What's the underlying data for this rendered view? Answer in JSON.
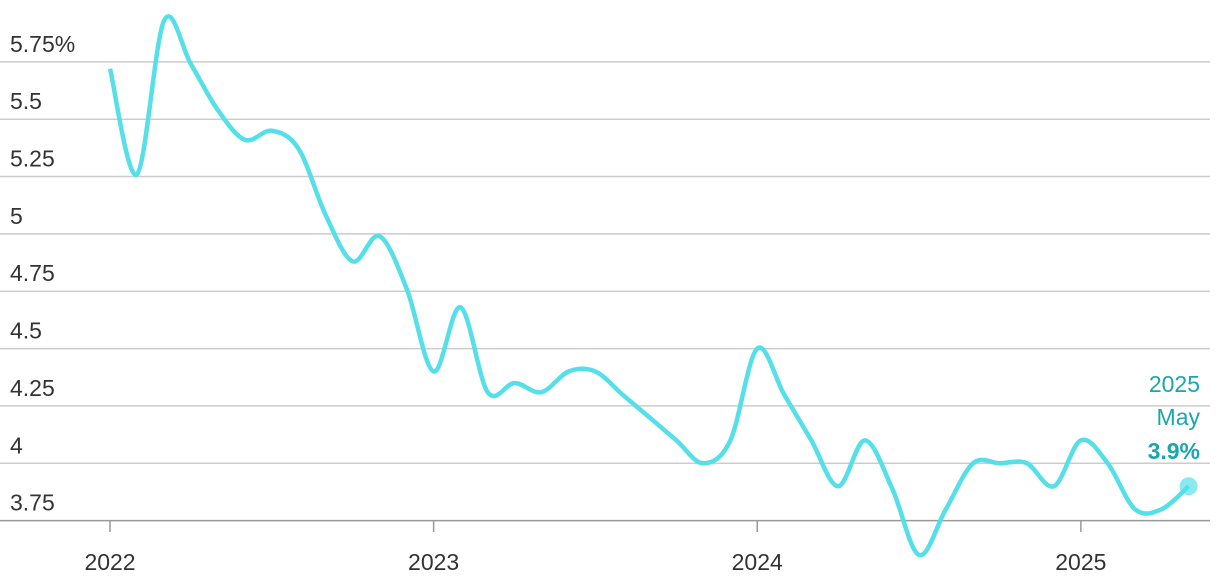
{
  "chart_data": {
    "type": "line",
    "x": [
      2022,
      2022.083,
      2022.167,
      2022.25,
      2022.333,
      2022.417,
      2022.5,
      2022.583,
      2022.667,
      2022.75,
      2022.833,
      2022.917,
      2023,
      2023.083,
      2023.167,
      2023.25,
      2023.333,
      2023.417,
      2023.5,
      2023.583,
      2023.667,
      2023.75,
      2023.833,
      2023.917,
      2024,
      2024.083,
      2024.167,
      2024.25,
      2024.333,
      2024.417,
      2024.5,
      2024.583,
      2024.667,
      2024.75,
      2024.833,
      2024.917,
      2025,
      2025.083,
      2025.167,
      2025.25,
      2025.333
    ],
    "series": [
      {
        "color": "#55dfe8",
        "values": [
          5.72,
          5.26,
          5.93,
          5.74,
          5.54,
          5.41,
          5.45,
          5.37,
          5.08,
          4.88,
          4.99,
          4.76,
          4.4,
          4.68,
          4.31,
          4.35,
          4.31,
          4.4,
          4.4,
          4.3,
          4.2,
          4.1,
          4.0,
          4.1,
          4.5,
          4.3,
          4.1,
          3.9,
          4.1,
          3.89,
          3.6,
          3.8,
          4.0,
          4.0,
          4.0,
          3.9,
          4.1,
          4.0,
          3.8,
          3.8,
          3.9
        ]
      }
    ],
    "xlim": [
      2021.66,
      2025.43
    ],
    "ylim": [
      3.6,
      5.95
    ],
    "xticks": [
      2022,
      2023,
      2024,
      2025
    ],
    "yticks": [
      3.75,
      4,
      4.25,
      4.5,
      4.75,
      5,
      5.25,
      5.5,
      {
        "value": 5.75,
        "label": "5.75%"
      }
    ],
    "grid": true,
    "annotation": {
      "year": "2025",
      "month": "May",
      "value_label": "3.9%",
      "color": "#1aa6ae"
    }
  }
}
